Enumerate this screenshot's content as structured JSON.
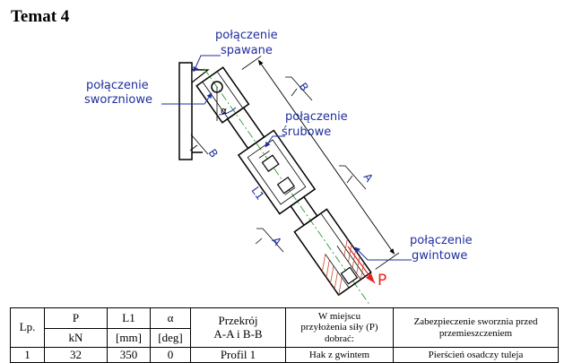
{
  "title": "Temat 4",
  "drawing": {
    "labels": {
      "spawane_1": "połączenie",
      "spawane_2": "spawane",
      "sworzniowe_1": "połączenie",
      "sworzniowe_2": "sworzniowe",
      "srubowe_1": "połączenie",
      "srubowe_2": "śrubowe",
      "gwintowe_1": "połączenie",
      "gwintowe_2": "gwintowe"
    },
    "section_marks": {
      "b": "B",
      "a": "A"
    },
    "dimension_L1": "L1",
    "angle_symbol": "α",
    "force_symbol": "P",
    "colors": {
      "labels": "#1f2f9e",
      "axis": "#2c9a2c",
      "force": "#e8231e"
    }
  },
  "table": {
    "headers": {
      "lp": "Lp.",
      "p": "P",
      "l1": "L1",
      "alpha": "α",
      "przekroj_1": "Przekrój",
      "przekroj_2": "A-A i B-B",
      "miejsce_1": "W miejscu",
      "miejsce_2": "przyłożenia siły (P)",
      "miejsce_3": "dobrać:",
      "zabezp_1": "Zabezpieczenie sworznia przed",
      "zabezp_2": "przemieszczeniem"
    },
    "units": {
      "p": "kN",
      "l1": "[mm]",
      "alpha": "[deg]"
    },
    "rows": [
      {
        "lp": "1",
        "p": "32",
        "l1": "350",
        "alpha": "0",
        "przekroj": "Profil 1",
        "miejsce": "Hak z gwintem",
        "zabezp": "Pierścień osadczy tuleja"
      }
    ]
  }
}
